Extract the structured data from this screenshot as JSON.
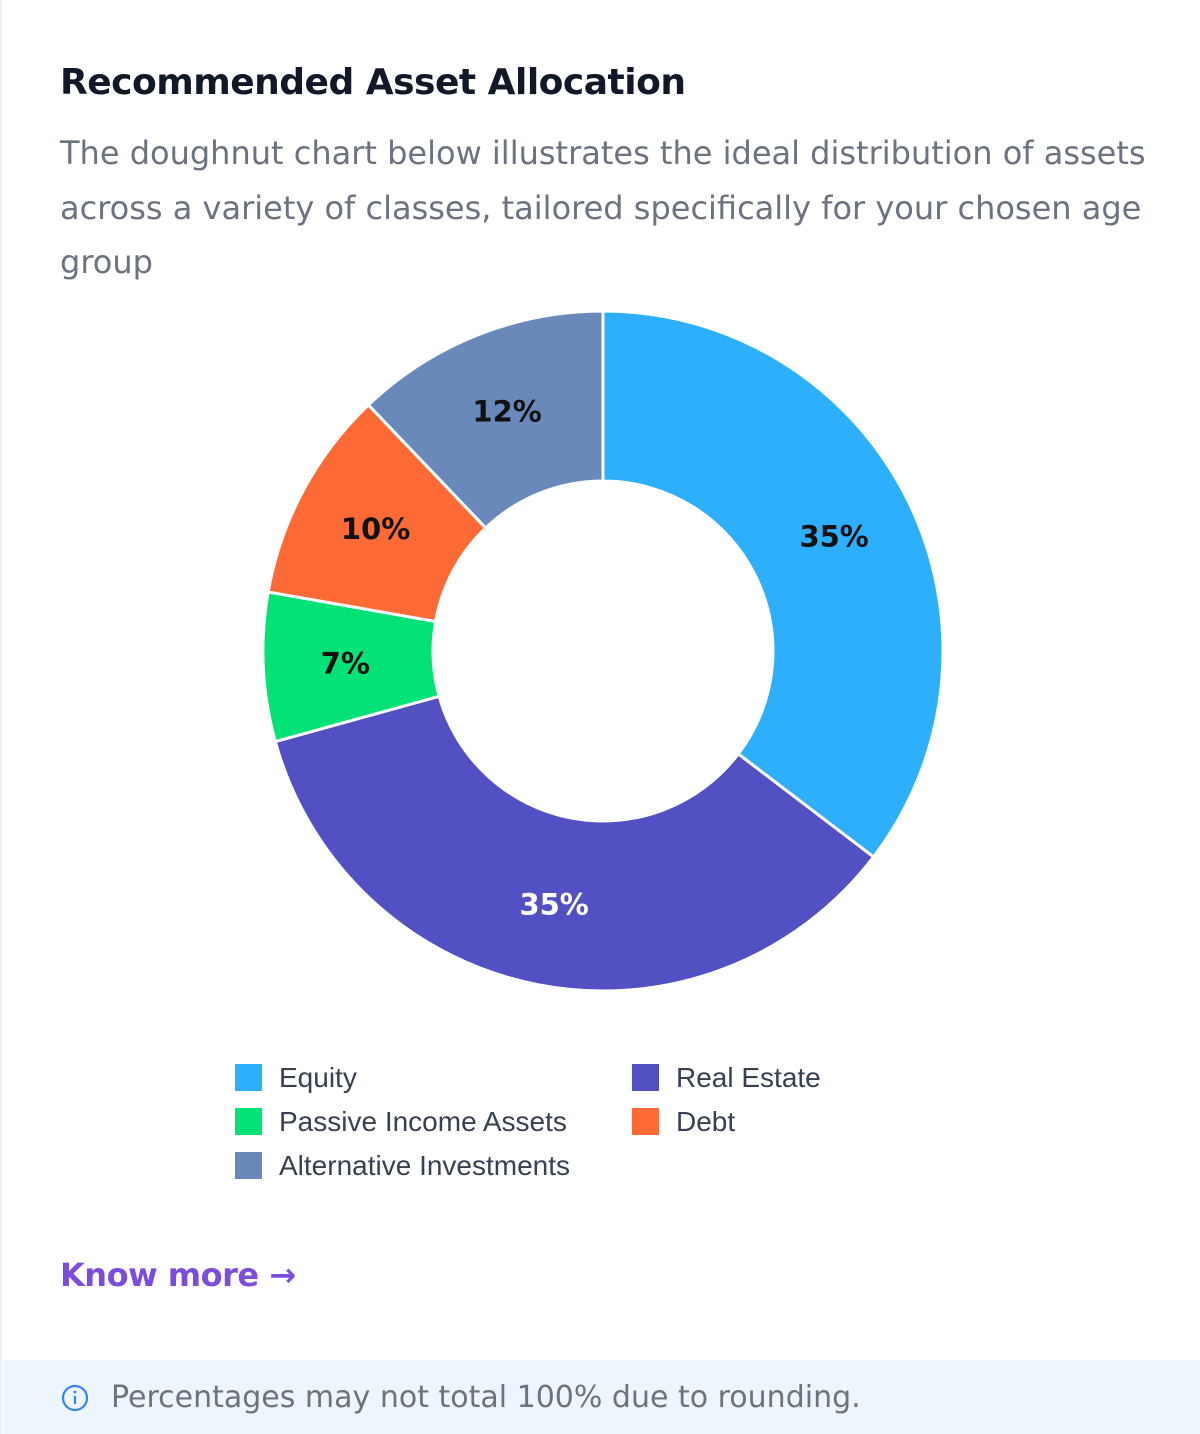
{
  "card": {
    "title": "Recommended Asset Allocation",
    "subtitle": "The doughnut chart below illustrates the ideal distribution of assets across a variety of classes, tailored specifically for your chosen age group",
    "know_more": "Know more →",
    "footer_note": "Percentages may not total 100% due to rounding.",
    "footer_icon": "info-icon"
  },
  "chart_data": {
    "type": "doughnut",
    "title": "",
    "unit": "%",
    "legend_position": "bottom",
    "categories": [
      "Equity",
      "Real Estate",
      "Passive Income Assets",
      "Debt",
      "Alternative Investments"
    ],
    "values": [
      35,
      35,
      7,
      10,
      12
    ],
    "labels": [
      "35%",
      "35%",
      "7%",
      "10%",
      "12%"
    ],
    "colors": [
      "#2eaffc",
      "#5350c4",
      "#02e276",
      "#fe6a36",
      "#6a89bb"
    ],
    "label_colors": [
      "#111111",
      "#ffffff",
      "#111111",
      "#111111",
      "#111111"
    ],
    "legend_order": [
      0,
      1,
      2,
      3,
      4
    ]
  }
}
